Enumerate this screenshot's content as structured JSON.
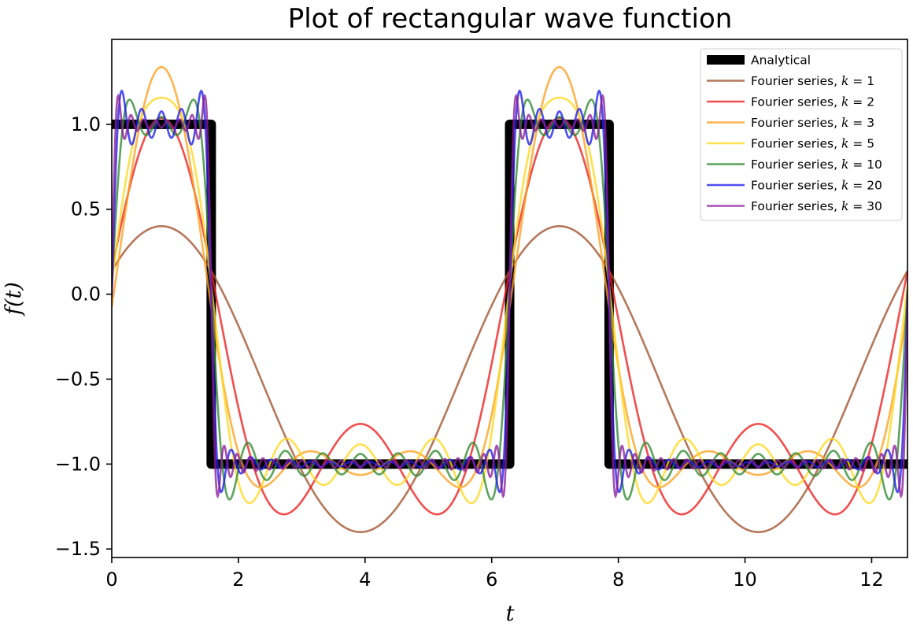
{
  "chart_data": {
    "type": "line",
    "title": "Plot of rectangular wave function",
    "xlabel": "t",
    "ylabel": "f(t)",
    "xlim": [
      0,
      12.566
    ],
    "ylim": [
      -1.55,
      1.5
    ],
    "xticks": [
      0,
      2,
      4,
      6,
      8,
      10,
      12
    ],
    "xtick_labels": [
      "0",
      "2",
      "4",
      "6",
      "8",
      "10",
      "12"
    ],
    "yticks": [
      -1.5,
      -1.0,
      -0.5,
      0.0,
      0.5,
      1.0
    ],
    "ytick_labels": [
      "−1.5",
      "−1.0",
      "−0.5",
      "0.0",
      "0.5",
      "1.0"
    ],
    "grid": false,
    "legend_position": "top-right",
    "analytical": {
      "name": "Analytical",
      "color": "#000000",
      "x": [
        0,
        1.5708,
        1.5708,
        6.2832,
        6.2832,
        7.854,
        7.854,
        12.566
      ],
      "y": [
        1,
        1,
        -1,
        -1,
        1,
        1,
        -1,
        -1
      ]
    },
    "fourier": {
      "period": 6.2832,
      "high_time": 1.5708,
      "series": [
        {
          "name": "Fourier series, k = 1",
          "name_prefix": "Fourier series, ",
          "k_text": "k",
          "k_value": "= 1",
          "k": 1,
          "color": "#a0522d"
        },
        {
          "name": "Fourier series, k = 2",
          "name_prefix": "Fourier series, ",
          "k_text": "k",
          "k_value": "= 2",
          "k": 2,
          "color": "#ee1c1c"
        },
        {
          "name": "Fourier series, k = 3",
          "name_prefix": "Fourier series, ",
          "k_text": "k",
          "k_value": "= 3",
          "k": 3,
          "color": "#ff9f1c"
        },
        {
          "name": "Fourier series, k = 5",
          "name_prefix": "Fourier series, ",
          "k_text": "k",
          "k_value": "= 5",
          "k": 5,
          "color": "#ffd91c"
        },
        {
          "name": "Fourier series, k = 10",
          "name_prefix": "Fourier series, ",
          "k_text": "k",
          "k_value": "= 10",
          "k": 10,
          "color": "#2e8b2e"
        },
        {
          "name": "Fourier series, k = 20",
          "name_prefix": "Fourier series, ",
          "k_text": "k",
          "k_value": "= 20",
          "k": 20,
          "color": "#1c1cee"
        },
        {
          "name": "Fourier series, k = 30",
          "name_prefix": "Fourier series, ",
          "k_text": "k",
          "k_value": "= 30",
          "k": 30,
          "color": "#8a1c9a"
        }
      ]
    }
  }
}
